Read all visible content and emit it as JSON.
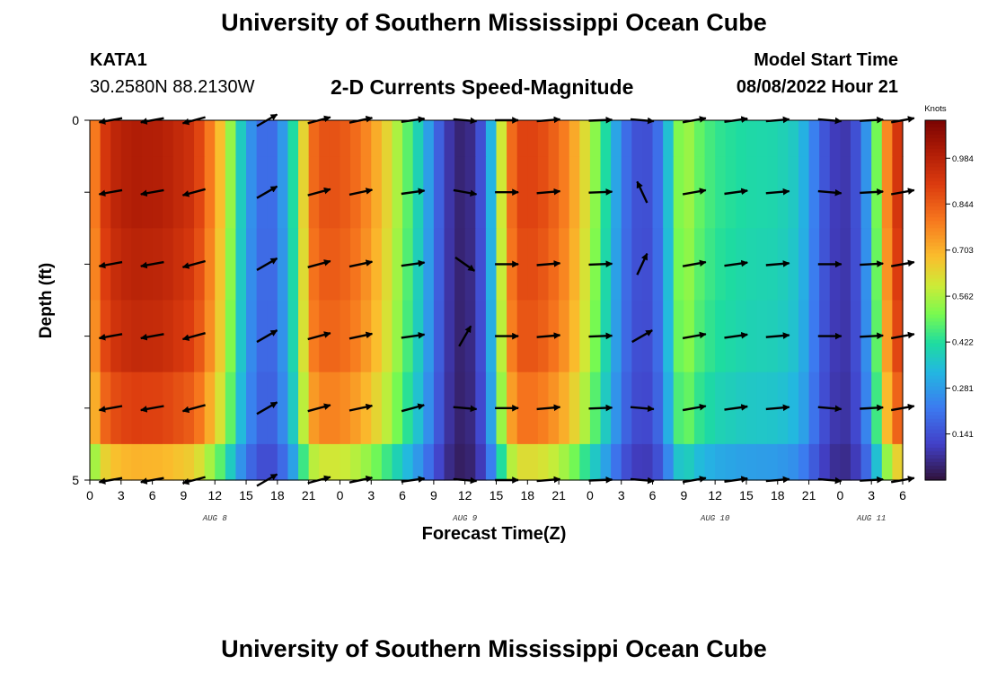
{
  "header": {
    "title": "University of Southern Mississippi Ocean Cube",
    "station": "KATA1",
    "coordinates": "30.2580N  88.2130W",
    "subtitle": "2-D Currents Speed-Magnitude",
    "model_start_label": "Model Start Time",
    "model_start_value": "08/08/2022 Hour 21"
  },
  "footer": {
    "title": "University of Southern Mississippi Ocean Cube"
  },
  "chart_data": {
    "type": "heatmap",
    "title": "2-D Currents Speed-Magnitude",
    "xlabel": "Forecast Time(Z)",
    "ylabel": "Depth (ft)",
    "x_tick_labels": [
      "0",
      "3",
      "6",
      "9",
      "12",
      "15",
      "18",
      "21",
      "0",
      "3",
      "6",
      "9",
      "12",
      "15",
      "18",
      "21",
      "0",
      "3",
      "6",
      "9",
      "12",
      "15",
      "18",
      "21",
      "0",
      "3",
      "6"
    ],
    "x_range_hours": [
      0,
      78
    ],
    "day_labels": [
      {
        "label": "AUG 8",
        "hour": 12
      },
      {
        "label": "AUG 9",
        "hour": 36
      },
      {
        "label": "AUG 10",
        "hour": 60
      },
      {
        "label": "AUG 11",
        "hour": 75
      }
    ],
    "y_tick_labels": [
      "0",
      "5"
    ],
    "y_range_ft": [
      0,
      5
    ],
    "depth_levels_ft": [
      0,
      1,
      2,
      3,
      4,
      5
    ],
    "colorbar": {
      "unit": "Knots",
      "tick_labels": [
        "0.984",
        "0.844",
        "0.703",
        "0.562",
        "0.422",
        "0.281",
        "0.141"
      ],
      "ticks": [
        0.984,
        0.844,
        0.703,
        0.562,
        0.422,
        0.281,
        0.141
      ],
      "range": [
        0,
        1.1
      ]
    },
    "speed_profile_hours": [
      0,
      1,
      2,
      4,
      7,
      10,
      11,
      12,
      13,
      14,
      15,
      16,
      17,
      18,
      19,
      20,
      21,
      22,
      24,
      26,
      28,
      30,
      32,
      33,
      34,
      35,
      36,
      37,
      38,
      39,
      40,
      41,
      42,
      44,
      46,
      48,
      50,
      51,
      52,
      53,
      54,
      55,
      56,
      57,
      58,
      60,
      63,
      66,
      68,
      69,
      70,
      71,
      72,
      73,
      74,
      75,
      76,
      77,
      78
    ],
    "speed_profile_knots": [
      0.7,
      0.88,
      0.96,
      1.0,
      0.99,
      0.93,
      0.84,
      0.74,
      0.62,
      0.45,
      0.3,
      0.22,
      0.17,
      0.22,
      0.33,
      0.5,
      0.78,
      0.86,
      0.86,
      0.8,
      0.68,
      0.52,
      0.35,
      0.22,
      0.12,
      0.05,
      0.04,
      0.08,
      0.2,
      0.45,
      0.75,
      0.88,
      0.9,
      0.86,
      0.76,
      0.58,
      0.36,
      0.23,
      0.16,
      0.13,
      0.15,
      0.25,
      0.45,
      0.58,
      0.5,
      0.44,
      0.41,
      0.4,
      0.36,
      0.28,
      0.18,
      0.12,
      0.08,
      0.1,
      0.18,
      0.35,
      0.65,
      0.88,
      0.96
    ],
    "depth_speed_factor": [
      1.0,
      1.0,
      0.98,
      0.96,
      0.9,
      0.7
    ],
    "vector_columns_hours": [
      2,
      6,
      10,
      17,
      22,
      26,
      31,
      36,
      40,
      44,
      49,
      53,
      58,
      62,
      66,
      71,
      75,
      78
    ],
    "vector_angles_deg": [
      190,
      190,
      195,
      30,
      15,
      12,
      8,
      355,
      0,
      5,
      2,
      355,
      10,
      8,
      5,
      355,
      3,
      10
    ],
    "vector_angle_overrides": [
      {
        "hour": 31,
        "depth": 4,
        "angle": 15
      },
      {
        "hour": 36,
        "depth": 1,
        "angle": 350
      },
      {
        "hour": 36,
        "depth": 2,
        "angle": 325
      },
      {
        "hour": 36,
        "depth": 3,
        "angle": 60
      },
      {
        "hour": 53,
        "depth": 1,
        "angle": 115
      },
      {
        "hour": 53,
        "depth": 2,
        "angle": 65
      },
      {
        "hour": 53,
        "depth": 3,
        "angle": 30
      },
      {
        "hour": 71,
        "depth": 2,
        "angle": 0
      },
      {
        "hour": 71,
        "depth": 3,
        "angle": 0
      }
    ]
  }
}
